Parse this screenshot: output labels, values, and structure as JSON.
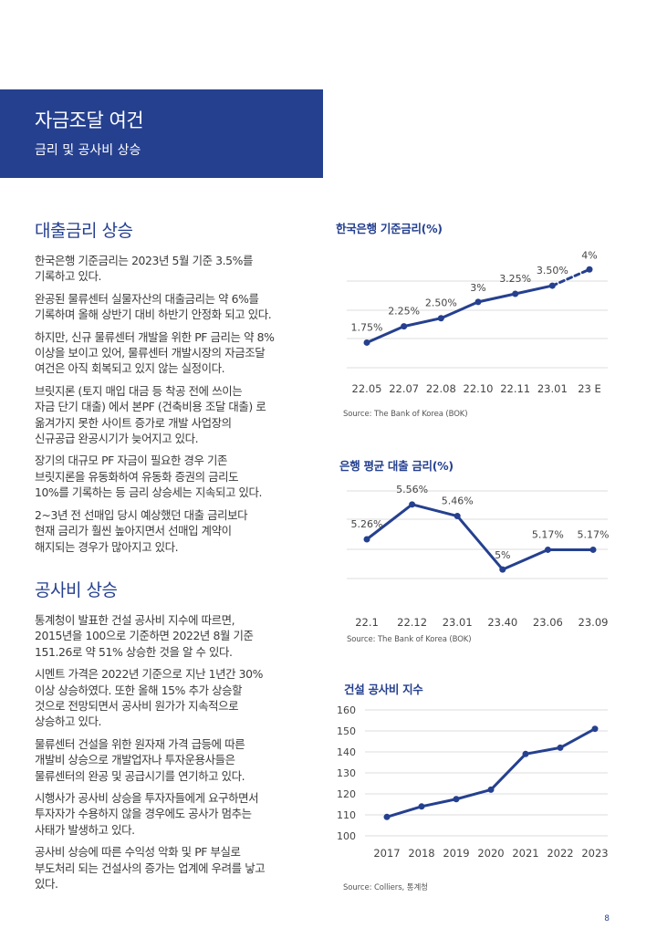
{
  "header": {
    "title": "자금조달 여건",
    "subtitle": "금리 및 공사비 상승"
  },
  "section1": {
    "heading": "대출금리 상승",
    "paragraphs": [
      [
        "한국은행 기준금리는 2023년 5월 기준 3.5%를",
        "기록하고 있다."
      ],
      [
        "완공된 물류센터 실물자산의 대출금리는 약 6%를",
        "기록하며 올해 상반기 대비 하반기 안정화 되고 있다."
      ],
      [
        "하지만, 신규 물류센터 개발을 위한 PF 금리는 약 8%",
        "이상을 보이고 있어, 물류센터 개발시장의 자금조달",
        "여건은 아직 회복되고 있지 않는 실정이다."
      ],
      [
        "브릿지론 (토지 매입 대금 등 착공 전에 쓰이는",
        "자금 단기 대출) 에서 본PF (건축비용 조달 대출) 로",
        "옮겨가지 못한 사이트 증가로 개발 사업장의",
        "신규공급 완공시기가 늦어지고 있다."
      ],
      [
        "장기의 대규모 PF 자금이 필요한 경우 기존",
        "브릿지론을 유동화하여 유동화 증권의 금리도",
        "10%를 기록하는 등 금리 상승세는 지속되고 있다."
      ],
      [
        "2~3년 전 선매입 당시 예상했던 대출 금리보다",
        "현재 금리가 훨씬 높아지면서 선매입 계약이",
        "해지되는 경우가 많아지고 있다."
      ]
    ]
  },
  "section2": {
    "heading": "공사비 상승",
    "paragraphs": [
      [
        "통계청이 발표한 건설 공사비 지수에 따르면,",
        "2015년을 100으로 기준하면 2022년 8월 기준",
        "151.26로 약 51% 상승한 것을 알 수 있다."
      ],
      [
        "시멘트 가격은 2022년 기준으로 지난 1년간 30%",
        "이상 상승하였다. 또한 올해 15% 추가 상승할",
        "것으로 전망되면서 공사비 원가가 지속적으로",
        "상승하고 있다."
      ],
      [
        "물류센터 건설을 위한 원자재 가격 급등에 따른",
        "개발비 상승으로 개발업자나 투자운용사들은",
        "물류센터의 완공 및 공급시기를 연기하고 있다."
      ],
      [
        "시행사가 공사비 상승을 투자자들에게 요구하면서",
        "투자자가 수용하지 않을 경우에도 공사가 멈추는",
        "사태가 발생하고 있다."
      ],
      [
        "공사비 상승에 따른 수익성 악화 및 PF 부실로",
        "부도처리 되는 건설사의 증가는 업계에 우려를 낳고",
        "있다."
      ]
    ]
  },
  "chart_data": [
    {
      "type": "line",
      "title": "한국은행 기준금리(%)",
      "categories": [
        "22.05",
        "22.07",
        "22.08",
        "22.10",
        "22.11",
        "23.01",
        "23 E"
      ],
      "values": [
        1.75,
        2.25,
        2.5,
        3.0,
        3.25,
        3.5,
        4.0
      ],
      "labels": [
        "1.75%",
        "2.25%",
        "2.50%",
        "3%",
        "3.25%",
        "3.50%",
        "4%"
      ],
      "dashed_last_segment": true,
      "ylim": [
        0.5,
        4.4
      ],
      "grid": true,
      "source": "Source: The Bank of Korea (BOK)",
      "color": "#25408f"
    },
    {
      "type": "line",
      "title": "은행 평균 대출 금리(%)",
      "categories": [
        "22.1",
        "22.12",
        "23.01",
        "23.40",
        "23.06",
        "23.09"
      ],
      "values": [
        5.26,
        5.56,
        5.46,
        5.0,
        5.17,
        5.17
      ],
      "labels": [
        "5.26%",
        "5.56%",
        "5.46%",
        "5%",
        "5.17%",
        "5.17%"
      ],
      "ylim": [
        4.6,
        5.7
      ],
      "grid": true,
      "source": "Source: The Bank of Korea (BOK)",
      "color": "#25408f"
    },
    {
      "type": "line",
      "title": "건설 공사비 지수",
      "categories": [
        "2017",
        "2018",
        "2019",
        "2020",
        "2021",
        "2022",
        "2023"
      ],
      "values": [
        109,
        114,
        117.5,
        122,
        139,
        142,
        151
      ],
      "yticks": [
        100,
        110,
        120,
        130,
        140,
        150,
        160
      ],
      "ylim": [
        100,
        160
      ],
      "grid": true,
      "source": "Source: Colliers, 통계청",
      "color": "#25408f"
    }
  ],
  "page": {
    "number": "8"
  }
}
